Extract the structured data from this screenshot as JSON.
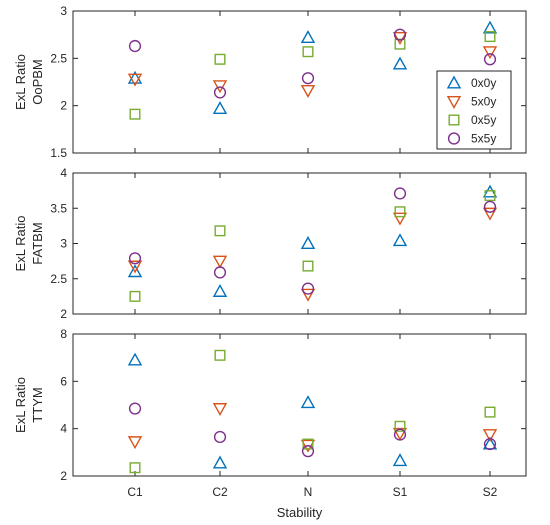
{
  "chart_data": [
    {
      "type": "scatter",
      "ylabel_lines": [
        "ExL Ratio",
        "OoPBM"
      ],
      "ylim": [
        1.5,
        3
      ],
      "yticks": [
        1.5,
        2,
        2.5,
        3
      ],
      "categories": [
        "C1",
        "C2",
        "N",
        "S1",
        "S2"
      ],
      "show_xticklabels": false,
      "legend": "top-right",
      "series": [
        {
          "name": "0x0y",
          "values": [
            2.29,
            1.97,
            2.72,
            2.44,
            2.82
          ]
        },
        {
          "name": "5x0y",
          "values": [
            2.28,
            2.21,
            2.16,
            2.72,
            2.57
          ]
        },
        {
          "name": "0x5y",
          "values": [
            1.91,
            2.49,
            2.57,
            2.65,
            2.73
          ]
        },
        {
          "name": "5x5y",
          "values": [
            2.63,
            2.14,
            2.29,
            2.75,
            2.49
          ]
        }
      ]
    },
    {
      "type": "scatter",
      "ylabel_lines": [
        "ExL Ratio",
        "FATBM"
      ],
      "ylim": [
        2,
        4
      ],
      "yticks": [
        2,
        2.5,
        3,
        3.5,
        4
      ],
      "categories": [
        "C1",
        "C2",
        "N",
        "S1",
        "S2"
      ],
      "show_xticklabels": false,
      "series": [
        {
          "name": "0x0y",
          "values": [
            2.6,
            2.32,
            3.0,
            3.04,
            3.73
          ]
        },
        {
          "name": "5x0y",
          "values": [
            2.68,
            2.75,
            2.28,
            3.36,
            3.43
          ]
        },
        {
          "name": "0x5y",
          "values": [
            2.25,
            3.18,
            2.68,
            3.45,
            3.68
          ]
        },
        {
          "name": "5x5y",
          "values": [
            2.79,
            2.59,
            2.36,
            3.71,
            3.52
          ]
        }
      ]
    },
    {
      "type": "scatter",
      "ylabel_lines": [
        "ExL Ratio",
        "TTYM"
      ],
      "ylim": [
        2,
        8
      ],
      "yticks": [
        2,
        4,
        6,
        8
      ],
      "categories": [
        "C1",
        "C2",
        "N",
        "S1",
        "S2"
      ],
      "show_xticklabels": true,
      "xlabel": "Stability",
      "series": [
        {
          "name": "0x0y",
          "values": [
            6.9,
            2.55,
            5.1,
            2.65,
            3.35
          ]
        },
        {
          "name": "5x0y",
          "values": [
            3.45,
            4.85,
            3.3,
            3.8,
            3.75
          ]
        },
        {
          "name": "0x5y",
          "values": [
            2.35,
            7.1,
            3.35,
            4.1,
            4.7
          ]
        },
        {
          "name": "5x5y",
          "values": [
            4.85,
            3.65,
            3.05,
            3.75,
            3.35
          ]
        }
      ]
    }
  ],
  "series_style": [
    {
      "name": "0x0y",
      "marker": "triangle-up",
      "color": "#0072BD"
    },
    {
      "name": "5x0y",
      "marker": "triangle-down",
      "color": "#D95319"
    },
    {
      "name": "0x5y",
      "marker": "square",
      "color": "#77AC30"
    },
    {
      "name": "5x5y",
      "marker": "circle",
      "color": "#7E2F8E"
    }
  ]
}
